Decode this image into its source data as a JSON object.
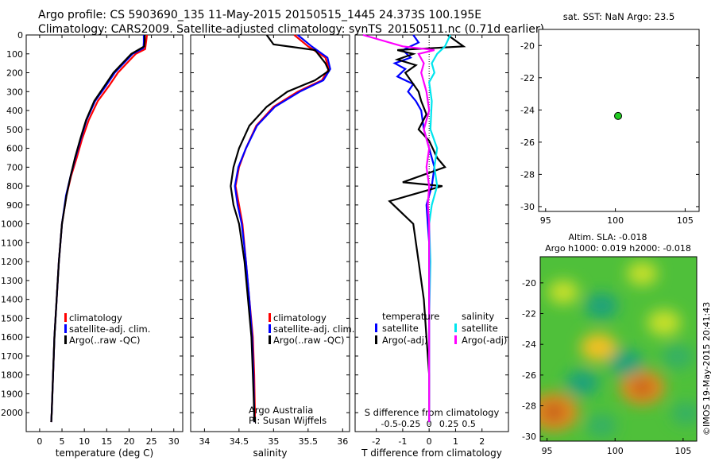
{
  "header": {
    "line1": "Argo profile: CS 5903690_135 11-May-2015 20150515_1445 24.373S 100.195E",
    "line2": "Climatology: CARS2009. Satellite-adjusted climatology: synTS_20150511.nc (0.71d earlier)"
  },
  "colors": {
    "climatology": "#ff0000",
    "satellite": "#0000ff",
    "argo": "#000000",
    "sal_satellite": "#00e5ee",
    "sal_argo": "#ff00ff",
    "marker": "#22cc22"
  },
  "chart_data": [
    {
      "type": "line",
      "id": "temperature_profile",
      "xlabel": "temperature (deg C)",
      "ylabel": "",
      "xlim": [
        -3,
        32
      ],
      "ylim": [
        2100,
        0
      ],
      "xticks": [
        0,
        5,
        10,
        15,
        20,
        25,
        30
      ],
      "yticks": [
        0,
        100,
        200,
        300,
        400,
        500,
        600,
        700,
        800,
        900,
        1000,
        1100,
        1200,
        1300,
        1400,
        1500,
        1600,
        1700,
        1800,
        1900,
        2000
      ],
      "legend": [
        "climatology",
        "satellite-adj. clim.",
        "Argo(..raw -QC)"
      ],
      "legend_position": "lower-right",
      "series": [
        {
          "name": "climatology",
          "color": "#ff0000",
          "points": [
            [
              24,
              0
            ],
            [
              23.8,
              40
            ],
            [
              23.6,
              75
            ],
            [
              21.5,
              100
            ],
            [
              19.5,
              150
            ],
            [
              17.5,
              200
            ],
            [
              15.5,
              270
            ],
            [
              13,
              350
            ],
            [
              11,
              450
            ],
            [
              9.5,
              550
            ],
            [
              8.3,
              650
            ],
            [
              7,
              750
            ],
            [
              6,
              850
            ],
            [
              5,
              1000
            ],
            [
              4.3,
              1200
            ],
            [
              3.8,
              1400
            ],
            [
              3.3,
              1600
            ],
            [
              3,
              1800
            ],
            [
              2.7,
              2000
            ],
            [
              2.6,
              2050
            ]
          ]
        },
        {
          "name": "satellite-adj. clim.",
          "color": "#0000ff",
          "points": [
            [
              23.3,
              0
            ],
            [
              23.3,
              40
            ],
            [
              23.2,
              70
            ],
            [
              20.8,
              100
            ],
            [
              18.8,
              150
            ],
            [
              16.8,
              200
            ],
            [
              14.8,
              270
            ],
            [
              12.4,
              350
            ],
            [
              10.5,
              450
            ],
            [
              9.2,
              550
            ],
            [
              8,
              650
            ],
            [
              6.9,
              750
            ],
            [
              5.9,
              850
            ],
            [
              5,
              1000
            ],
            [
              4.3,
              1200
            ],
            [
              3.8,
              1400
            ],
            [
              3.3,
              1600
            ],
            [
              3,
              1800
            ],
            [
              2.7,
              2000
            ],
            [
              2.6,
              2050
            ]
          ]
        },
        {
          "name": "Argo(..raw -QC)",
          "color": "#000000",
          "points": [
            [
              23.5,
              0
            ],
            [
              23.5,
              30
            ],
            [
              23.4,
              60
            ],
            [
              20.5,
              100
            ],
            [
              18.5,
              150
            ],
            [
              16.5,
              200
            ],
            [
              14.5,
              270
            ],
            [
              12.2,
              350
            ],
            [
              10.4,
              450
            ],
            [
              9.1,
              550
            ],
            [
              7.9,
              650
            ],
            [
              6.9,
              750
            ],
            [
              6,
              850
            ],
            [
              5,
              1000
            ],
            [
              4.3,
              1200
            ],
            [
              3.8,
              1400
            ],
            [
              3.3,
              1600
            ],
            [
              3,
              1800
            ],
            [
              2.7,
              2000
            ],
            [
              2.6,
              2050
            ]
          ]
        }
      ]
    },
    {
      "type": "line",
      "id": "salinity_profile",
      "xlabel": "salinity",
      "xlim": [
        33.8,
        36.1
      ],
      "ylim": [
        2100,
        0
      ],
      "xticks": [
        34,
        34.5,
        35,
        35.5,
        36
      ],
      "legend": [
        "climatology",
        "satellite-adj. clim.",
        "Argo(..raw -QC)"
      ],
      "annotation": [
        "Argo Australia",
        "PI: Susan Wijffels"
      ],
      "series": [
        {
          "name": "climatology",
          "color": "#ff0000",
          "points": [
            [
              35.3,
              0
            ],
            [
              35.5,
              60
            ],
            [
              35.75,
              120
            ],
            [
              35.8,
              180
            ],
            [
              35.7,
              240
            ],
            [
              35.35,
              300
            ],
            [
              35,
              380
            ],
            [
              34.75,
              480
            ],
            [
              34.6,
              600
            ],
            [
              34.5,
              700
            ],
            [
              34.45,
              800
            ],
            [
              34.5,
              900
            ],
            [
              34.55,
              1000
            ],
            [
              34.6,
              1200
            ],
            [
              34.65,
              1400
            ],
            [
              34.7,
              1600
            ],
            [
              34.72,
              1800
            ],
            [
              34.73,
              2000
            ],
            [
              34.73,
              2050
            ]
          ]
        },
        {
          "name": "satellite-adj. clim.",
          "color": "#0000ff",
          "points": [
            [
              35.35,
              0
            ],
            [
              35.55,
              60
            ],
            [
              35.78,
              120
            ],
            [
              35.82,
              180
            ],
            [
              35.72,
              240
            ],
            [
              35.38,
              300
            ],
            [
              35.02,
              380
            ],
            [
              34.76,
              480
            ],
            [
              34.6,
              600
            ],
            [
              34.49,
              700
            ],
            [
              34.44,
              800
            ],
            [
              34.48,
              900
            ],
            [
              34.54,
              1000
            ],
            [
              34.6,
              1200
            ],
            [
              34.65,
              1400
            ],
            [
              34.69,
              1600
            ],
            [
              34.71,
              1800
            ],
            [
              34.72,
              2000
            ],
            [
              34.72,
              2050
            ]
          ]
        },
        {
          "name": "Argo(..raw -QC)",
          "color": "#000000",
          "points": [
            [
              34.9,
              0
            ],
            [
              35.0,
              50
            ],
            [
              35.6,
              80
            ],
            [
              35.75,
              150
            ],
            [
              35.8,
              190
            ],
            [
              35.6,
              240
            ],
            [
              35.2,
              300
            ],
            [
              34.9,
              380
            ],
            [
              34.65,
              480
            ],
            [
              34.5,
              600
            ],
            [
              34.42,
              700
            ],
            [
              34.38,
              800
            ],
            [
              34.42,
              900
            ],
            [
              34.5,
              1000
            ],
            [
              34.58,
              1200
            ],
            [
              34.63,
              1400
            ],
            [
              34.68,
              1600
            ],
            [
              34.7,
              1800
            ],
            [
              34.72,
              2000
            ],
            [
              34.72,
              2050
            ]
          ]
        }
      ]
    },
    {
      "type": "line",
      "id": "difference_profile",
      "xlabel": "T difference from climatology",
      "x2label": "S difference from climatology",
      "xlim": [
        -2.8,
        3
      ],
      "ylim": [
        2100,
        0
      ],
      "xticks": [
        -2,
        -1,
        0,
        1,
        2
      ],
      "x2ticks": [
        "-0.5",
        "-0.25",
        "0",
        "0.25",
        "0.5"
      ],
      "legend_groups": [
        {
          "title": "temperature",
          "items": [
            "satellite",
            "Argo(-adj)"
          ]
        },
        {
          "title": "salinity",
          "items": [
            "satellite",
            "Argo(-adj)"
          ]
        }
      ],
      "series": [
        {
          "name": "temperature satellite",
          "color": "#0000ff",
          "points": [
            [
              -0.6,
              0
            ],
            [
              -0.4,
              40
            ],
            [
              -1.0,
              80
            ],
            [
              -0.7,
              120
            ],
            [
              -1.3,
              150
            ],
            [
              -0.9,
              180
            ],
            [
              -1.2,
              220
            ],
            [
              -0.6,
              260
            ],
            [
              -0.8,
              300
            ],
            [
              -0.5,
              350
            ],
            [
              -0.3,
              400
            ],
            [
              -0.2,
              500
            ],
            [
              0,
              600
            ],
            [
              0.2,
              700
            ],
            [
              0.1,
              800
            ],
            [
              -0.1,
              900
            ],
            [
              0,
              1100
            ],
            [
              0,
              1500
            ],
            [
              0,
              2000
            ],
            [
              0,
              2050
            ]
          ]
        },
        {
          "name": "temperature Argo(-adj)",
          "color": "#000000",
          "points": [
            [
              0.7,
              0
            ],
            [
              1.3,
              60
            ],
            [
              -1.2,
              80
            ],
            [
              -0.6,
              100
            ],
            [
              -1.2,
              130
            ],
            [
              -0.5,
              160
            ],
            [
              -0.9,
              200
            ],
            [
              -0.4,
              300
            ],
            [
              -0.3,
              350
            ],
            [
              -0.1,
              420
            ],
            [
              -0.4,
              500
            ],
            [
              0,
              560
            ],
            [
              0.3,
              650
            ],
            [
              0.6,
              700
            ],
            [
              -1.0,
              780
            ],
            [
              0.5,
              800
            ],
            [
              -1.5,
              880
            ],
            [
              -0.6,
              1000
            ],
            [
              -0.4,
              1200
            ],
            [
              -0.2,
              1400
            ],
            [
              -0.1,
              1600
            ],
            [
              0,
              1800
            ],
            [
              0,
              2000
            ],
            [
              0,
              2050
            ]
          ]
        },
        {
          "name": "salinity satellite",
          "color": "#00e5ee",
          "points": [
            [
              0.8,
              0
            ],
            [
              0.6,
              60
            ],
            [
              0.3,
              100
            ],
            [
              0.1,
              150
            ],
            [
              0.2,
              200
            ],
            [
              0,
              250
            ],
            [
              0.1,
              350
            ],
            [
              0.05,
              500
            ],
            [
              0.3,
              600
            ],
            [
              0.2,
              700
            ],
            [
              0.3,
              800
            ],
            [
              0.1,
              900
            ],
            [
              0,
              1000
            ],
            [
              0.05,
              1200
            ],
            [
              0,
              1500
            ],
            [
              0,
              2000
            ],
            [
              0,
              2050
            ]
          ]
        },
        {
          "name": "salinity Argo(-adj)",
          "color": "#ff00ff",
          "points": [
            [
              -2.5,
              0
            ],
            [
              -1.0,
              60
            ],
            [
              0.2,
              80
            ],
            [
              -0.4,
              100
            ],
            [
              -0.2,
              150
            ],
            [
              -0.3,
              200
            ],
            [
              -0.1,
              300
            ],
            [
              0,
              400
            ],
            [
              -0.2,
              500
            ],
            [
              0,
              600
            ],
            [
              -0.1,
              700
            ],
            [
              0,
              800
            ],
            [
              -0.05,
              900
            ],
            [
              0,
              1000
            ],
            [
              0,
              2000
            ],
            [
              0,
              2050
            ]
          ]
        }
      ]
    },
    {
      "type": "scatter",
      "id": "location_map",
      "title": "sat. SST: NaN Argo: 23.5",
      "xlim": [
        94.5,
        106
      ],
      "ylim": [
        -30.3,
        -19
      ],
      "xticks": [
        95,
        100,
        105
      ],
      "yticks": [
        -20,
        -22,
        -24,
        -26,
        -28,
        -30
      ],
      "points": [
        [
          100.195,
          -24.373
        ]
      ]
    },
    {
      "type": "heatmap",
      "id": "sla_map",
      "title_line1": "Altim. SLA: -0.018",
      "title_line2": "Argo h1000: 0.019 h2000: -0.018",
      "xlim": [
        94.5,
        106
      ],
      "ylim": [
        -30.3,
        -18.3
      ],
      "xticks": [
        95,
        100,
        105
      ],
      "yticks": [
        -20,
        -22,
        -24,
        -26,
        -28,
        -30
      ],
      "blobs": [
        {
          "x": 95.5,
          "y": -28.4,
          "v": 1.0
        },
        {
          "x": 102.0,
          "y": -26.8,
          "v": 0.85
        },
        {
          "x": 98.8,
          "y": -24.2,
          "v": 0.55
        },
        {
          "x": 103.6,
          "y": -22.6,
          "v": 0.45
        },
        {
          "x": 96.2,
          "y": -20.6,
          "v": 0.35
        },
        {
          "x": 102.0,
          "y": -19.4,
          "v": 0.35
        },
        {
          "x": 99.0,
          "y": -21.5,
          "v": -0.45
        },
        {
          "x": 100.8,
          "y": -25.2,
          "v": -0.5
        },
        {
          "x": 97.6,
          "y": -26.5,
          "v": -0.45
        },
        {
          "x": 104.6,
          "y": -24.8,
          "v": -0.4
        },
        {
          "x": 99.0,
          "y": -29.3,
          "v": -0.35
        },
        {
          "x": 105.2,
          "y": -28.5,
          "v": -0.3
        }
      ]
    }
  ],
  "footer_stamp": "©IMOS 19-May-2015 20:41:43"
}
